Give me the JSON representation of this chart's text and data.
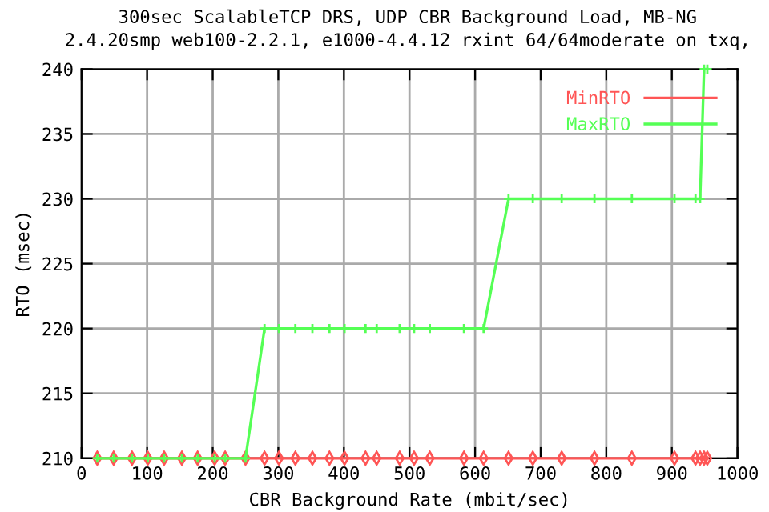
{
  "chart_data": {
    "type": "line",
    "title": "300sec ScalableTCP DRS, UDP CBR Background Load, MB-NG",
    "subtitle": "2.4.20smp web100-2.2.1, e1000-4.4.12 rxint 64/64moderate on txq,",
    "xlabel": "CBR Background Rate (mbit/sec)",
    "ylabel": "RTO (msec)",
    "x": [
      24,
      49,
      77,
      101,
      126,
      153,
      177,
      203,
      219,
      250,
      279,
      301,
      326,
      352,
      378,
      401,
      433,
      450,
      485,
      507,
      531,
      583,
      613,
      651,
      688,
      732,
      782,
      839,
      904,
      936,
      943,
      949,
      954
    ],
    "series": [
      {
        "name": "MinRTO",
        "color": "#ff5555",
        "marker": "diamond",
        "values": [
          210,
          210,
          210,
          210,
          210,
          210,
          210,
          210,
          210,
          210,
          210,
          210,
          210,
          210,
          210,
          210,
          210,
          210,
          210,
          210,
          210,
          210,
          210,
          210,
          210,
          210,
          210,
          210,
          210,
          210,
          210,
          210,
          210
        ]
      },
      {
        "name": "MaxRTO",
        "color": "#55ff55",
        "marker": "cross",
        "values": [
          210,
          210,
          210,
          210,
          210,
          210,
          210,
          210,
          210,
          210,
          220,
          220,
          220,
          220,
          220,
          220,
          220,
          220,
          220,
          220,
          220,
          220,
          220,
          230,
          230,
          230,
          230,
          230,
          230,
          230,
          230,
          240,
          240
        ]
      }
    ],
    "xlim": [
      0,
      1000
    ],
    "xticks": [
      0,
      100,
      200,
      300,
      400,
      500,
      600,
      700,
      800,
      900,
      1000
    ],
    "ylim": [
      210,
      240
    ],
    "yticks": [
      210,
      215,
      220,
      225,
      230,
      235,
      240
    ],
    "grid": true,
    "legend": "top right",
    "line_style": "solid"
  }
}
